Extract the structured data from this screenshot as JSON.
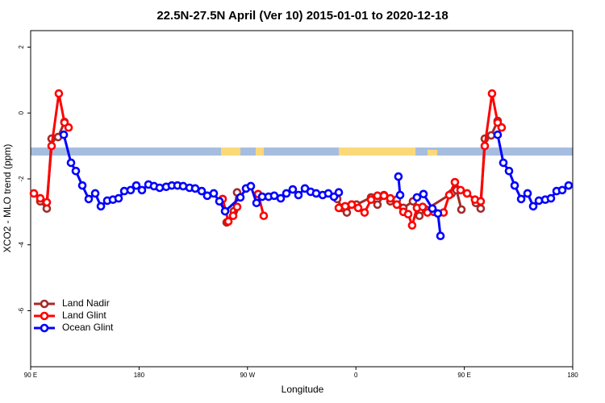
{
  "chart_data": {
    "type": "line",
    "title": "22.5N-27.5N April (Ver 10)   2015-01-01 to 2020-12-18",
    "xlabel": "Longitude",
    "ylabel": "XCO2 - MLO trend (ppm)",
    "xlim": [
      90,
      540
    ],
    "ylim": [
      -7.7,
      2.5
    ],
    "xticks": [
      {
        "value": 90,
        "label": "90 E"
      },
      180,
      {
        "value": 270,
        "label": "90 W"
      },
      {
        "value": 360,
        "label": "0"
      },
      {
        "value": 450,
        "label": "90 E"
      },
      {
        "value": 540,
        "label": "180"
      }
    ],
    "yticks": [
      -6,
      -4,
      -2,
      0,
      2
    ],
    "grid": false,
    "legend": "bottomleft",
    "series": [
      {
        "name": "Land Nadir",
        "color": "#a52a2a",
        "x": [
          98.0,
          103.4,
          107.4,
          112.8,
          118.1,
          185,
          252.7,
          258.7,
          261.4,
          300,
          344.5,
          348.5,
          352.5,
          356.5,
          360.5,
          372.6,
          377.9,
          383.3,
          388.6,
          394.0,
          399.4,
          407.4,
          412.7,
          418.1,
          439.5,
          443.5,
          447.6,
          453,
          459.6,
          463.6,
          467.0,
          472.3,
          477.7
        ],
        "values": [
          -2.68,
          -2.9,
          -0.78,
          -0.73,
          -0.27,
          null,
          -3.32,
          -2.98,
          -2.41,
          null,
          -2.61,
          -2.88,
          -3.02,
          -2.78,
          -2.78,
          -2.56,
          -2.78,
          -2.49,
          -2.68,
          -2.63,
          -2.88,
          -2.68,
          -3.12,
          -2.93,
          -2.44,
          -2.34,
          -2.93,
          null,
          -2.73,
          -2.9,
          -0.78,
          -0.68,
          -0.24
        ]
      },
      {
        "name": "Land Glint",
        "color": "#ff0000",
        "x": [
          92.7,
          98.0,
          103.4,
          107.4,
          113.4,
          118.1,
          121.5,
          185,
          249.4,
          254.1,
          258.1,
          261.4,
          270,
          278.8,
          283.5,
          315,
          345.8,
          351.1,
          356.5,
          361.9,
          367.2,
          372.6,
          377.9,
          383.3,
          388.6,
          394.0,
          399.4,
          403.4,
          406.7,
          410.7,
          415.4,
          419.4,
          424.8,
          432.8,
          437.5,
          442.2,
          446.9,
          452.3,
          458.9,
          463.6,
          467.0,
          473.0,
          477.7,
          481.0
        ],
        "values": [
          -2.44,
          -2.59,
          -2.71,
          -1.0,
          0.59,
          -0.29,
          -0.44,
          null,
          -2.61,
          -3.29,
          -3.12,
          -2.85,
          null,
          -2.46,
          -3.12,
          null,
          -2.88,
          -2.83,
          -2.78,
          -2.88,
          -3.02,
          -2.63,
          -2.51,
          -2.51,
          -2.59,
          -2.78,
          -3.0,
          -3.07,
          -3.41,
          -2.88,
          -2.85,
          -3.02,
          -3.0,
          -3.02,
          -2.49,
          -2.1,
          -2.34,
          -2.44,
          -2.63,
          -2.68,
          -1.0,
          0.59,
          -0.29,
          -0.44
        ]
      },
      {
        "name": "Ocean Glint",
        "color": "#0000ff",
        "x": [
          117.5,
          123.5,
          127.5,
          132.9,
          138.2,
          143.6,
          148.3,
          153.6,
          158.3,
          163.0,
          167.7,
          173.0,
          177.7,
          182.4,
          187.8,
          192.4,
          197.1,
          202.5,
          207.2,
          211.9,
          216.6,
          221.9,
          226.6,
          232.0,
          236.6,
          242.0,
          246.7,
          251.4,
          264.1,
          268.8,
          272.8,
          277.5,
          282.2,
          287.5,
          292.2,
          297.6,
          302.3,
          307.6,
          312.3,
          317.7,
          322.4,
          327.0,
          332.4,
          337.1,
          341.8,
          345.8,
          370,
          395.3,
          396.7,
          403,
          410.7,
          416.1,
          423.5,
          428.1,
          430.2,
          455,
          477.7,
          482.4,
          487.1,
          491.8,
          497.2,
          502.5,
          507.2,
          511.9,
          517.2,
          521.9,
          526.6,
          531.3,
          536.6
        ],
        "values": [
          -0.66,
          -1.51,
          -1.76,
          -2.2,
          -2.61,
          -2.44,
          -2.83,
          -2.66,
          -2.63,
          -2.59,
          -2.37,
          -2.34,
          -2.2,
          -2.34,
          -2.17,
          -2.22,
          -2.27,
          -2.24,
          -2.2,
          -2.2,
          -2.22,
          -2.27,
          -2.29,
          -2.37,
          -2.51,
          -2.44,
          -2.68,
          -2.98,
          -2.56,
          -2.29,
          -2.22,
          -2.73,
          -2.54,
          -2.54,
          -2.51,
          -2.59,
          -2.44,
          -2.32,
          -2.49,
          -2.29,
          -2.39,
          -2.44,
          -2.49,
          -2.44,
          -2.54,
          -2.41,
          null,
          -1.93,
          -2.49,
          null,
          -2.56,
          -2.46,
          -2.9,
          -3.05,
          -3.73,
          null,
          -0.66,
          -1.51,
          -1.76,
          -2.2,
          -2.61,
          -2.44,
          -2.83,
          -2.66,
          -2.63,
          -2.59,
          -2.37,
          -2.34,
          -2.2
        ]
      }
    ]
  }
}
